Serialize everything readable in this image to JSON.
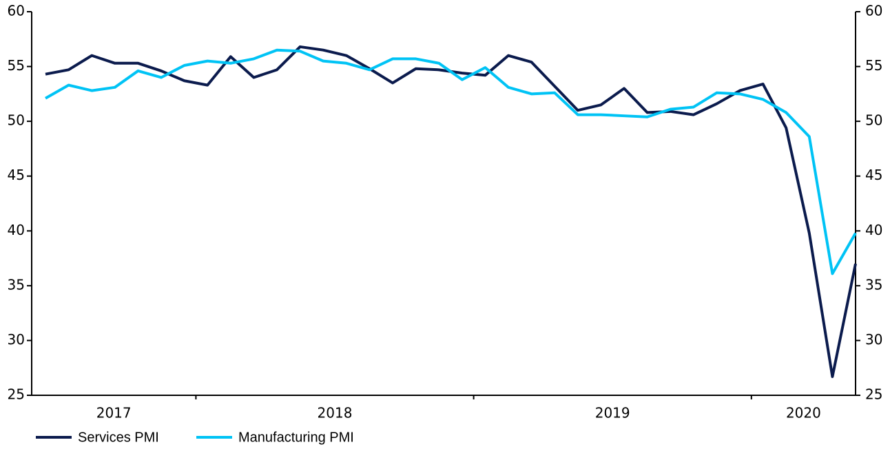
{
  "chart_data": {
    "type": "line",
    "categories": [
      "2017",
      "2017",
      "2017",
      "2017",
      "2017",
      "2017",
      "2017",
      "2018",
      "2018",
      "2018",
      "2018",
      "2018",
      "2018",
      "2018",
      "2018",
      "2018",
      "2018",
      "2018",
      "2018",
      "2019",
      "2019",
      "2019",
      "2019",
      "2019",
      "2019",
      "2019",
      "2019",
      "2019",
      "2019",
      "2019",
      "2019",
      "2020",
      "2020",
      "2020",
      "2020",
      "2020"
    ],
    "series": [
      {
        "name": "Services PMI",
        "color": "#0b1b4d",
        "values": [
          54.3,
          54.7,
          56.0,
          55.3,
          55.3,
          54.6,
          53.7,
          53.3,
          55.9,
          54.0,
          54.7,
          56.8,
          56.5,
          56.0,
          54.8,
          53.5,
          54.8,
          54.7,
          54.4,
          54.2,
          56.0,
          55.4,
          53.2,
          51.0,
          51.5,
          53.0,
          50.8,
          50.9,
          50.6,
          51.6,
          52.8,
          53.4,
          49.4,
          39.8,
          26.7,
          37.0
        ]
      },
      {
        "name": "Manufacturing PMI",
        "color": "#00c3f5",
        "values": [
          52.1,
          53.3,
          52.8,
          53.1,
          54.6,
          54.0,
          55.1,
          55.5,
          55.3,
          55.7,
          56.5,
          56.4,
          55.5,
          55.3,
          54.7,
          55.7,
          55.7,
          55.3,
          53.8,
          54.9,
          53.1,
          52.5,
          52.6,
          50.6,
          50.6,
          50.5,
          50.4,
          51.1,
          51.3,
          52.6,
          52.5,
          52.0,
          50.8,
          48.6,
          36.1,
          39.8
        ]
      }
    ],
    "ylim": [
      25,
      60
    ],
    "yticks": [
      25,
      30,
      35,
      40,
      45,
      50,
      55,
      60
    ],
    "y2lim": [
      25,
      60
    ],
    "y2ticks": [
      25,
      30,
      35,
      40,
      45,
      50,
      55,
      60
    ],
    "grid": false,
    "legend": "bottom-left"
  }
}
